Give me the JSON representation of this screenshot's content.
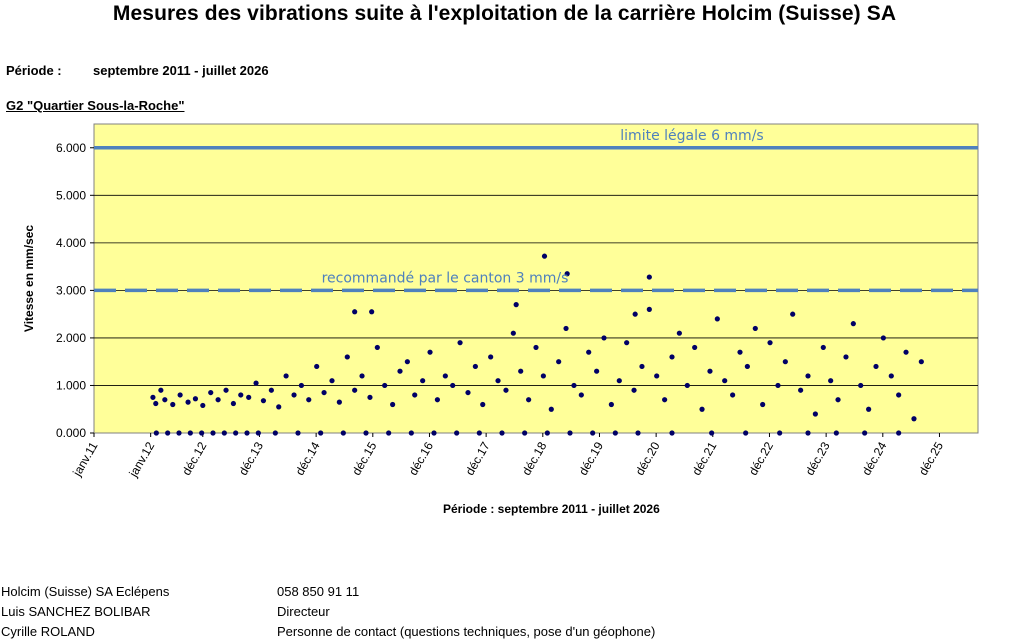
{
  "header": {
    "title": "Mesures des vibrations suite à l'exploitation de la carrière Holcim (Suisse) SA",
    "period_label": "Période :",
    "period_value": "septembre 2011 - juillet 2026",
    "station": "G2 \"Quartier Sous-la-Roche\""
  },
  "chart_data": {
    "type": "scatter",
    "ylabel": "Vitesse en mm/sec",
    "xlabel": "Période : septembre 2011 - juillet 2026",
    "ylim": [
      0,
      6.5
    ],
    "y_ticks": [
      "0.000",
      "1.000",
      "2.000",
      "3.000",
      "4.000",
      "5.000",
      "6.000"
    ],
    "x_ticks": [
      "janv.11",
      "janv.12",
      "déc.12",
      "déc.13",
      "déc.14",
      "déc.15",
      "déc.16",
      "déc.17",
      "déc.18",
      "déc.19",
      "déc.20",
      "déc.21",
      "déc.22",
      "déc.23",
      "déc.24",
      "déc.25"
    ],
    "grid": true,
    "background_color": "#FFFF99",
    "marker_color": "#000066",
    "reference_lines": [
      {
        "label": "limite légale 6 mm/s",
        "value": 6,
        "style": "solid",
        "color": "#4F81BD"
      },
      {
        "label": "recommandé par le canton 3 mm/s",
        "value": 3,
        "style": "dashed",
        "color": "#4F81BD"
      }
    ],
    "series": [
      {
        "x": [
          12.04,
          12.09,
          12.18,
          12.25,
          12.39,
          12.52,
          12.66,
          12.79,
          12.92,
          13.06,
          13.19,
          13.33,
          13.46,
          13.59,
          13.73,
          13.86,
          13.99,
          14.13,
          14.26,
          14.39,
          14.53,
          14.66,
          14.79,
          14.93,
          15.06,
          15.2,
          15.33,
          15.47,
          15.6,
          15.73,
          15.87,
          16.0,
          16.13,
          16.27,
          16.4,
          16.53,
          16.66,
          16.8,
          16.93,
          17.06,
          17.2,
          17.33,
          17.46,
          17.6,
          17.73,
          17.86,
          18.0,
          18.13,
          18.27,
          18.4,
          18.53,
          18.67,
          18.8,
          18.93,
          19.07,
          19.2,
          19.33,
          19.47,
          19.6,
          19.73,
          19.87,
          20.0,
          20.13,
          20.27,
          20.4,
          20.53,
          20.67,
          20.8,
          20.93,
          21.07,
          21.2,
          21.33,
          21.47,
          21.6,
          21.73,
          21.87,
          22.0,
          22.13,
          22.27,
          22.4,
          22.53,
          22.67,
          22.8,
          22.93,
          23.07,
          23.2,
          23.33,
          23.47,
          23.6,
          23.73,
          23.87,
          24.0,
          24.13,
          24.27,
          24.4,
          24.53,
          24.67,
          24.8,
          24.93,
          25.07,
          25.2,
          25.33,
          25.47,
          25.6,
          18.95,
          19.35,
          20.8,
          20.55,
          15.6,
          15.9,
          18.45
        ],
        "y": [
          0.75,
          0.62,
          0.9,
          0.7,
          0.6,
          0.8,
          0.65,
          0.72,
          0.58,
          0.85,
          0.7,
          0.9,
          0.62,
          0.8,
          0.75,
          1.05,
          0.68,
          0.9,
          0.55,
          1.2,
          0.8,
          1.0,
          0.7,
          1.4,
          0.85,
          1.1,
          0.65,
          1.6,
          0.9,
          1.2,
          0.75,
          1.8,
          1.0,
          0.6,
          1.3,
          1.5,
          0.8,
          1.1,
          1.7,
          0.7,
          1.2,
          1.0,
          1.9,
          0.85,
          1.4,
          0.6,
          1.6,
          1.1,
          0.9,
          2.1,
          1.3,
          0.7,
          1.8,
          1.2,
          0.5,
          1.5,
          2.2,
          1.0,
          0.8,
          1.7,
          1.3,
          2.0,
          0.6,
          1.1,
          1.9,
          0.9,
          1.4,
          2.6,
          1.2,
          0.7,
          1.6,
          2.1,
          1.0,
          1.8,
          0.5,
          1.3,
          2.4,
          1.1,
          0.8,
          1.7,
          1.4,
          2.2,
          0.6,
          1.9,
          1.0,
          1.5,
          2.5,
          0.9,
          1.2,
          0.4,
          1.8,
          1.1,
          0.7,
          1.6,
          2.3,
          1.0,
          0.5,
          1.4,
          2.0,
          1.2,
          0.8,
          1.7,
          0.3,
          1.5,
          3.72,
          3.35,
          3.28,
          2.5,
          2.55,
          2.55,
          2.7
        ]
      },
      {
        "x": [
          12.1,
          12.3,
          12.5,
          12.7,
          12.9,
          13.1,
          13.3,
          13.5,
          13.7,
          13.9,
          14.2,
          14.6,
          15.0,
          15.4,
          15.8,
          16.2,
          16.6,
          17.0,
          17.4,
          17.8,
          18.2,
          18.6,
          19.0,
          19.4,
          19.8,
          20.2,
          20.6,
          21.2,
          21.9,
          22.5,
          23.1,
          23.6,
          24.1,
          24.6,
          25.2
        ],
        "y": [
          0,
          0,
          0,
          0,
          0,
          0,
          0,
          0,
          0,
          0,
          0,
          0,
          0,
          0,
          0,
          0,
          0,
          0,
          0,
          0,
          0,
          0,
          0,
          0,
          0,
          0,
          0,
          0,
          0,
          0,
          0,
          0,
          0,
          0,
          0
        ]
      }
    ]
  },
  "footer": {
    "rows": [
      {
        "left": "Holcim (Suisse) SA Eclépens",
        "right": "058 850 91 11"
      },
      {
        "left": "Luis SANCHEZ BOLIBAR",
        "right": "Directeur"
      },
      {
        "left": "Cyrille ROLAND",
        "right": "Personne de contact (questions techniques, pose d'un géophone)"
      }
    ]
  }
}
